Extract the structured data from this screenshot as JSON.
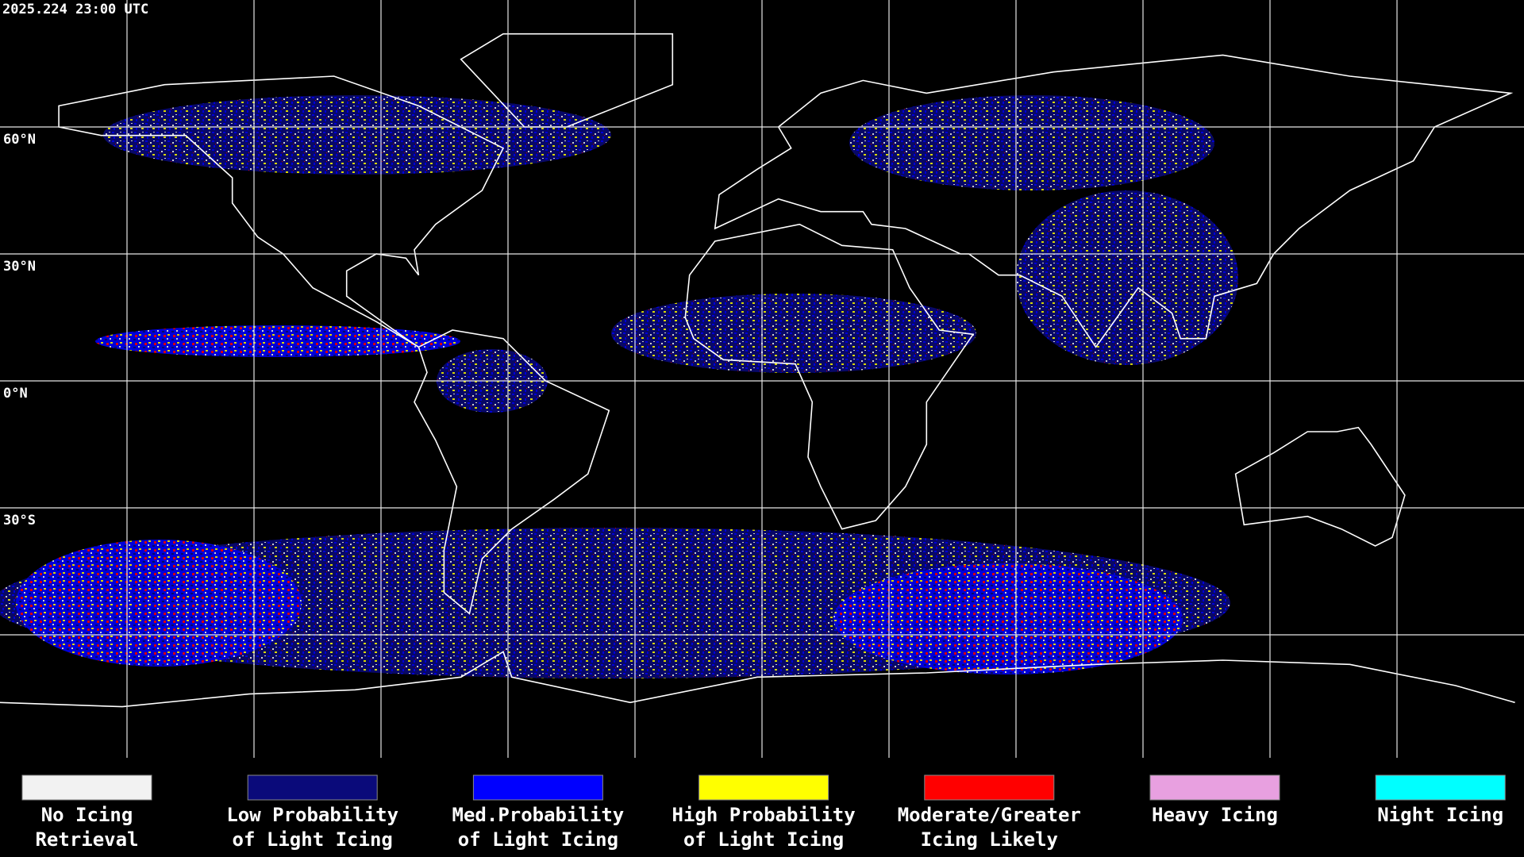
{
  "header": {
    "timestamp": "2025.224 23:00 UTC"
  },
  "map": {
    "latitude_labels": [
      "60°N",
      "30°N",
      "0°N",
      "30°S"
    ]
  },
  "legend": {
    "items": [
      {
        "lines": [
          "No Icing",
          "Retrieval"
        ],
        "color": "#f2f2f2"
      },
      {
        "lines": [
          "Low Probability",
          "of Light Icing"
        ],
        "color": "#0a0a7a"
      },
      {
        "lines": [
          "Med.Probability",
          "of Light Icing"
        ],
        "color": "#0000ff"
      },
      {
        "lines": [
          "High Probability",
          "of Light Icing"
        ],
        "color": "#ffff00"
      },
      {
        "lines": [
          "Moderate/Greater",
          "Icing Likely"
        ],
        "color": "#ff0000"
      },
      {
        "lines": [
          "Heavy Icing"
        ],
        "color": "#e8a0e0"
      },
      {
        "lines": [
          "Night Icing"
        ],
        "color": "#00ffff"
      }
    ]
  }
}
